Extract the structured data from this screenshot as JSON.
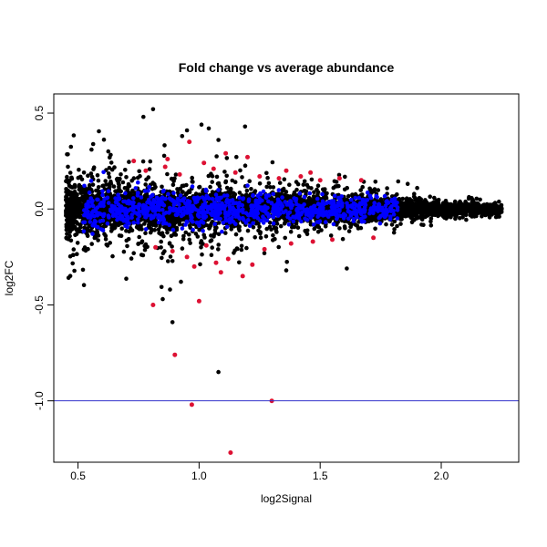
{
  "chart_data": {
    "type": "scatter",
    "title": "Fold change vs average abundance",
    "xlabel": "log2Signal",
    "ylabel": "log2FC",
    "xlim": [
      0.4,
      2.32
    ],
    "ylim": [
      -1.32,
      0.6
    ],
    "x_ticks": [
      "0.5",
      "1.0",
      "1.5",
      "2.0"
    ],
    "y_ticks": [
      "0.5",
      "0.0",
      "-0.5",
      "-1.0"
    ],
    "grid": false,
    "legend": "none",
    "reference_line": {
      "y": -1.0,
      "color": "#3333cc"
    },
    "colors": {
      "background_points": "#000000",
      "highlight_blue": "#0000ff",
      "highlight_red": "#dd1133"
    },
    "background_cloud": {
      "x_range": [
        0.45,
        2.25
      ],
      "core_y_spread": [
        0.09,
        0.02
      ],
      "outer_y_spread": [
        0.28,
        0.03
      ]
    },
    "blue_cloud": {
      "x_range": [
        0.52,
        1.82
      ],
      "y_spread": [
        0.1,
        0.05
      ]
    },
    "outliers": [
      {
        "x": 0.77,
        "y": 0.48
      },
      {
        "x": 0.81,
        "y": 0.52
      },
      {
        "x": 0.95,
        "y": 0.41
      },
      {
        "x": 1.01,
        "y": 0.44
      },
      {
        "x": 1.04,
        "y": 0.42
      },
      {
        "x": 1.19,
        "y": 0.43
      },
      {
        "x": 0.93,
        "y": 0.38
      },
      {
        "x": 1.08,
        "y": 0.36
      },
      {
        "x": 0.89,
        "y": -0.59
      },
      {
        "x": 1.08,
        "y": -0.85
      },
      {
        "x": 0.85,
        "y": -0.47
      },
      {
        "x": 0.88,
        "y": -0.42
      },
      {
        "x": 1.61,
        "y": -0.31
      },
      {
        "x": 1.36,
        "y": -0.32
      }
    ],
    "red_points": [
      {
        "x": 0.81,
        "y": -0.5
      },
      {
        "x": 0.9,
        "y": -0.76
      },
      {
        "x": 0.97,
        "y": -1.02
      },
      {
        "x": 1.13,
        "y": -1.27
      },
      {
        "x": 1.3,
        "y": -1.0
      },
      {
        "x": 1.0,
        "y": -0.48
      },
      {
        "x": 0.73,
        "y": 0.25
      },
      {
        "x": 0.96,
        "y": 0.35
      },
      {
        "x": 1.11,
        "y": 0.29
      },
      {
        "x": 1.2,
        "y": 0.27
      },
      {
        "x": 0.78,
        "y": 0.2
      },
      {
        "x": 0.86,
        "y": 0.22
      },
      {
        "x": 0.92,
        "y": 0.18
      },
      {
        "x": 1.06,
        "y": 0.21
      },
      {
        "x": 1.15,
        "y": 0.19
      },
      {
        "x": 1.25,
        "y": 0.17
      },
      {
        "x": 1.33,
        "y": 0.16
      },
      {
        "x": 1.42,
        "y": 0.17
      },
      {
        "x": 1.5,
        "y": 0.15
      },
      {
        "x": 1.58,
        "y": 0.16
      },
      {
        "x": 1.67,
        "y": 0.15
      },
      {
        "x": 0.82,
        "y": -0.2
      },
      {
        "x": 0.89,
        "y": -0.22
      },
      {
        "x": 0.95,
        "y": -0.25
      },
      {
        "x": 1.03,
        "y": -0.19
      },
      {
        "x": 1.07,
        "y": -0.28
      },
      {
        "x": 1.12,
        "y": -0.26
      },
      {
        "x": 1.18,
        "y": -0.35
      },
      {
        "x": 1.22,
        "y": -0.29
      },
      {
        "x": 1.27,
        "y": -0.21
      },
      {
        "x": 1.38,
        "y": -0.18
      },
      {
        "x": 1.47,
        "y": -0.17
      },
      {
        "x": 1.55,
        "y": -0.16
      },
      {
        "x": 1.72,
        "y": -0.15
      },
      {
        "x": 0.98,
        "y": -0.3
      },
      {
        "x": 1.09,
        "y": -0.33
      },
      {
        "x": 0.87,
        "y": 0.26
      },
      {
        "x": 1.02,
        "y": 0.24
      },
      {
        "x": 1.36,
        "y": 0.2
      },
      {
        "x": 1.46,
        "y": 0.19
      }
    ]
  }
}
